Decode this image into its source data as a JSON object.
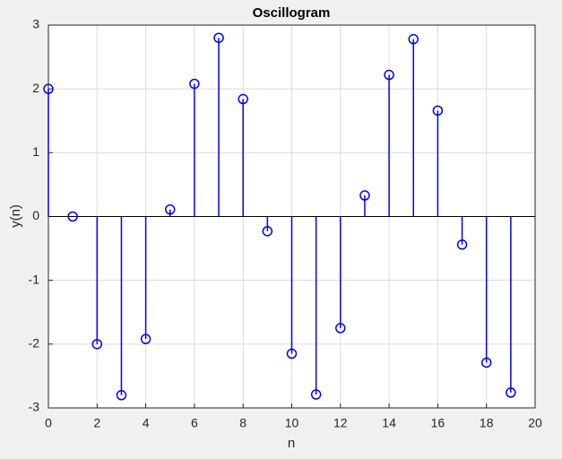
{
  "chart_data": {
    "type": "stem",
    "title": "Oscillogram",
    "x_label": "n",
    "y_label": "y(n)",
    "x": [
      0,
      1,
      2,
      3,
      4,
      5,
      6,
      7,
      8,
      9,
      10,
      11,
      12,
      13,
      14,
      15,
      16,
      17,
      18,
      19
    ],
    "values": [
      2.0,
      0.0,
      -2.0,
      -2.8,
      -1.92,
      0.11,
      2.08,
      2.8,
      1.84,
      -0.23,
      -2.15,
      -2.79,
      -1.75,
      0.33,
      2.22,
      2.78,
      1.66,
      -0.44,
      -2.29,
      -2.76
    ],
    "color": "#0000ff",
    "xlim": [
      0,
      20
    ],
    "xticks": [
      0,
      2,
      4,
      6,
      8,
      10,
      12,
      14,
      16,
      18,
      20
    ],
    "ylim": [
      -3,
      3
    ],
    "yticks": [
      -3,
      -2,
      -1,
      0,
      1,
      2,
      3
    ],
    "grid": true
  }
}
